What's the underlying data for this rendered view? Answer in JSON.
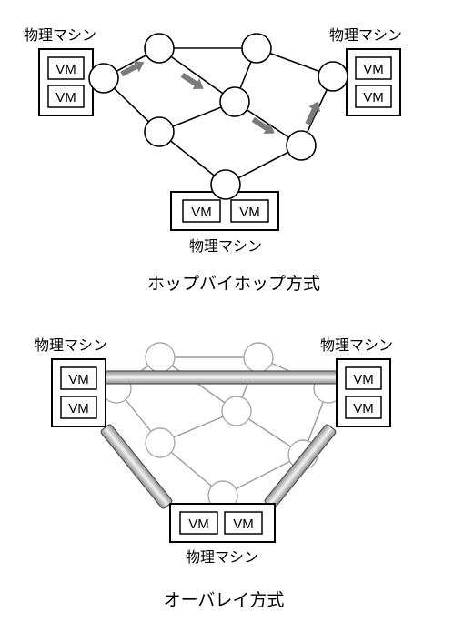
{
  "labels": {
    "physical_machine": "物理マシン",
    "vm": "VM"
  },
  "captions": {
    "hop_by_hop": "ホップバイホップ方式",
    "overlay": "オーバレイ方式"
  },
  "colors": {
    "arrow": "#7a7a7a",
    "faded_network": "#9a9a9a",
    "tunnel_mid": "#dcdcdc"
  }
}
